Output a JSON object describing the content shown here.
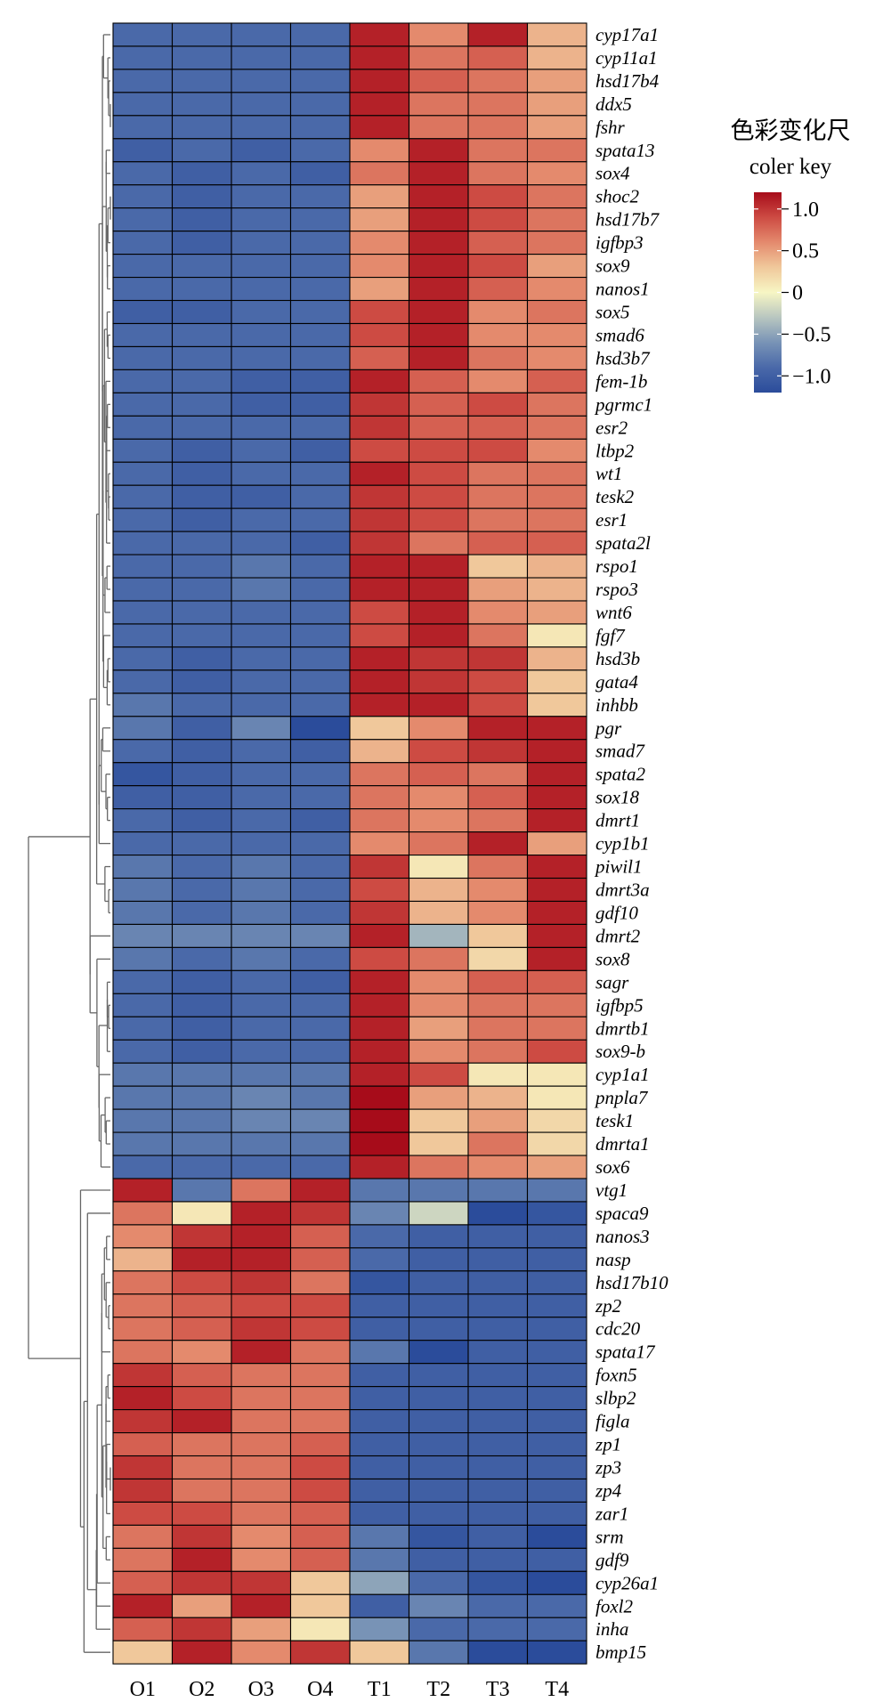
{
  "chart_data": {
    "type": "heatmap",
    "color_key": {
      "title": "色彩变化尺",
      "subtitle": "coler key",
      "ticks": [
        "1.0",
        "0.5",
        "0",
        "−0.5",
        "−1.0"
      ],
      "range": [
        -1.2,
        1.2
      ],
      "tick_values": [
        1.0,
        0.5,
        0,
        -0.5,
        -1.0
      ],
      "colors": [
        "#2b4c9b",
        "#4a69a9",
        "#7893b6",
        "#b8c6c0",
        "#f7f6c4",
        "#f0c89b",
        "#e48a6d",
        "#cd4b43",
        "#a70c1a"
      ]
    },
    "columns": [
      "O1",
      "O2",
      "O3",
      "O4",
      "T1",
      "T2",
      "T3",
      "T4"
    ],
    "rows": [
      {
        "gene": "cyp17a1",
        "values": [
          -0.9,
          -0.9,
          -0.9,
          -0.9,
          1.1,
          0.6,
          1.1,
          0.4
        ]
      },
      {
        "gene": "cyp11a1",
        "values": [
          -0.9,
          -0.9,
          -0.9,
          -0.9,
          1.1,
          0.7,
          0.8,
          0.4
        ]
      },
      {
        "gene": "hsd17b4",
        "values": [
          -0.9,
          -0.9,
          -0.9,
          -0.9,
          1.1,
          0.8,
          0.7,
          0.5
        ]
      },
      {
        "gene": "ddx5",
        "values": [
          -0.9,
          -0.9,
          -0.9,
          -0.9,
          1.1,
          0.7,
          0.7,
          0.5
        ]
      },
      {
        "gene": "fshr",
        "values": [
          -0.9,
          -0.9,
          -0.9,
          -0.9,
          1.1,
          0.7,
          0.7,
          0.5
        ]
      },
      {
        "gene": "spata13",
        "values": [
          -1.0,
          -0.9,
          -1.0,
          -0.9,
          0.6,
          1.1,
          0.7,
          0.7
        ]
      },
      {
        "gene": "sox4",
        "values": [
          -0.9,
          -1.0,
          -0.9,
          -1.0,
          0.7,
          1.1,
          0.7,
          0.6
        ]
      },
      {
        "gene": "shoc2",
        "values": [
          -0.9,
          -1.0,
          -0.9,
          -0.9,
          0.5,
          1.1,
          0.9,
          0.7
        ]
      },
      {
        "gene": "hsd17b7",
        "values": [
          -0.9,
          -1.0,
          -0.9,
          -0.9,
          0.5,
          1.1,
          0.9,
          0.7
        ]
      },
      {
        "gene": "igfbp3",
        "values": [
          -0.9,
          -1.0,
          -0.9,
          -0.9,
          0.6,
          1.1,
          0.8,
          0.7
        ]
      },
      {
        "gene": "sox9",
        "values": [
          -0.9,
          -0.9,
          -0.9,
          -0.9,
          0.6,
          1.1,
          0.9,
          0.5
        ]
      },
      {
        "gene": "nanos1",
        "values": [
          -0.9,
          -0.9,
          -0.9,
          -0.9,
          0.5,
          1.1,
          0.8,
          0.6
        ]
      },
      {
        "gene": "sox5",
        "values": [
          -1.0,
          -1.0,
          -0.9,
          -0.9,
          0.9,
          1.1,
          0.6,
          0.7
        ]
      },
      {
        "gene": "smad6",
        "values": [
          -0.9,
          -0.9,
          -0.9,
          -0.9,
          0.9,
          1.1,
          0.6,
          0.6
        ]
      },
      {
        "gene": "hsd3b7",
        "values": [
          -0.9,
          -0.9,
          -0.9,
          -0.9,
          0.8,
          1.1,
          0.7,
          0.6
        ]
      },
      {
        "gene": "fem-1b",
        "values": [
          -0.9,
          -0.9,
          -1.0,
          -1.0,
          1.1,
          0.8,
          0.6,
          0.8
        ]
      },
      {
        "gene": "pgrmc1",
        "values": [
          -0.9,
          -0.9,
          -1.0,
          -1.0,
          1.0,
          0.8,
          0.9,
          0.7
        ]
      },
      {
        "gene": "esr2",
        "values": [
          -0.9,
          -0.9,
          -0.9,
          -0.9,
          1.0,
          0.8,
          0.8,
          0.7
        ]
      },
      {
        "gene": "ltbp2",
        "values": [
          -0.9,
          -1.0,
          -0.9,
          -1.0,
          0.9,
          0.9,
          0.9,
          0.6
        ]
      },
      {
        "gene": "wt1",
        "values": [
          -0.9,
          -1.0,
          -0.9,
          -0.9,
          1.1,
          0.9,
          0.7,
          0.7
        ]
      },
      {
        "gene": "tesk2",
        "values": [
          -0.9,
          -1.0,
          -1.0,
          -0.9,
          1.0,
          0.9,
          0.7,
          0.7
        ]
      },
      {
        "gene": "esr1",
        "values": [
          -0.9,
          -1.0,
          -0.9,
          -0.9,
          1.0,
          0.9,
          0.7,
          0.7
        ]
      },
      {
        "gene": "spata2l",
        "values": [
          -0.9,
          -0.9,
          -0.9,
          -1.0,
          1.0,
          0.7,
          0.8,
          0.8
        ]
      },
      {
        "gene": "rspo1",
        "values": [
          -0.9,
          -0.9,
          -0.8,
          -0.9,
          1.1,
          1.1,
          0.3,
          0.4
        ]
      },
      {
        "gene": "rspo3",
        "values": [
          -0.9,
          -0.9,
          -0.8,
          -0.9,
          1.1,
          1.1,
          0.5,
          0.4
        ]
      },
      {
        "gene": "wnt6",
        "values": [
          -0.9,
          -0.9,
          -0.9,
          -0.9,
          0.9,
          1.1,
          0.6,
          0.5
        ]
      },
      {
        "gene": "fgf7",
        "values": [
          -0.9,
          -0.9,
          -0.9,
          -0.9,
          0.9,
          1.1,
          0.7,
          0.1
        ]
      },
      {
        "gene": "hsd3b",
        "values": [
          -0.9,
          -1.0,
          -0.9,
          -0.9,
          1.1,
          1.0,
          1.0,
          0.4
        ]
      },
      {
        "gene": "gata4",
        "values": [
          -0.9,
          -1.0,
          -0.9,
          -0.9,
          1.1,
          1.0,
          0.9,
          0.3
        ]
      },
      {
        "gene": "inhbb",
        "values": [
          -0.8,
          -0.9,
          -0.9,
          -0.9,
          1.1,
          1.1,
          0.9,
          0.3
        ]
      },
      {
        "gene": "pgr",
        "values": [
          -0.8,
          -1.0,
          -0.7,
          -1.2,
          0.3,
          0.6,
          1.1,
          1.1
        ]
      },
      {
        "gene": "smad7",
        "values": [
          -0.9,
          -1.0,
          -0.9,
          -1.0,
          0.4,
          0.9,
          1.0,
          1.1
        ]
      },
      {
        "gene": "spata2",
        "values": [
          -1.1,
          -1.0,
          -0.9,
          -0.9,
          0.7,
          0.8,
          0.7,
          1.1
        ]
      },
      {
        "gene": "sox18",
        "values": [
          -1.0,
          -1.0,
          -0.9,
          -0.9,
          0.7,
          0.6,
          0.8,
          1.1
        ]
      },
      {
        "gene": "dmrt1",
        "values": [
          -0.9,
          -1.0,
          -0.9,
          -1.0,
          0.7,
          0.6,
          0.7,
          1.1
        ]
      },
      {
        "gene": "cyp1b1",
        "values": [
          -0.9,
          -0.9,
          -0.9,
          -0.9,
          0.6,
          0.7,
          1.1,
          0.5
        ]
      },
      {
        "gene": "piwil1",
        "values": [
          -0.8,
          -0.9,
          -0.8,
          -0.9,
          1.0,
          0.1,
          0.7,
          1.1
        ]
      },
      {
        "gene": "dmrt3a",
        "values": [
          -0.8,
          -0.9,
          -0.8,
          -0.9,
          0.9,
          0.4,
          0.6,
          1.1
        ]
      },
      {
        "gene": "gdf10",
        "values": [
          -0.8,
          -0.9,
          -0.8,
          -0.9,
          1.0,
          0.4,
          0.6,
          1.1
        ]
      },
      {
        "gene": "dmrt2",
        "values": [
          -0.7,
          -0.7,
          -0.7,
          -0.7,
          1.1,
          -0.4,
          0.3,
          1.1
        ]
      },
      {
        "gene": "sox8",
        "values": [
          -0.8,
          -0.9,
          -0.8,
          -0.9,
          0.9,
          0.7,
          0.2,
          1.1
        ]
      },
      {
        "gene": "sagr",
        "values": [
          -0.9,
          -1.0,
          -0.9,
          -1.0,
          1.1,
          0.6,
          0.8,
          0.8
        ]
      },
      {
        "gene": "igfbp5",
        "values": [
          -0.9,
          -1.0,
          -0.9,
          -0.9,
          1.1,
          0.6,
          0.7,
          0.7
        ]
      },
      {
        "gene": "dmrtb1",
        "values": [
          -0.9,
          -1.0,
          -0.9,
          -0.9,
          1.1,
          0.5,
          0.7,
          0.7
        ]
      },
      {
        "gene": "sox9-b",
        "values": [
          -0.9,
          -1.0,
          -0.9,
          -0.9,
          1.1,
          0.6,
          0.7,
          0.9
        ]
      },
      {
        "gene": "cyp1a1",
        "values": [
          -0.8,
          -0.8,
          -0.8,
          -0.8,
          1.1,
          0.9,
          0.1,
          0.1
        ]
      },
      {
        "gene": "pnpla7",
        "values": [
          -0.8,
          -0.8,
          -0.7,
          -0.8,
          1.2,
          0.5,
          0.4,
          0.1
        ]
      },
      {
        "gene": "tesk1",
        "values": [
          -0.8,
          -0.8,
          -0.7,
          -0.7,
          1.2,
          0.3,
          0.5,
          0.2
        ]
      },
      {
        "gene": "dmrta1",
        "values": [
          -0.8,
          -0.8,
          -0.8,
          -0.8,
          1.2,
          0.3,
          0.7,
          0.2
        ]
      },
      {
        "gene": "sox6",
        "values": [
          -0.9,
          -0.9,
          -0.9,
          -0.9,
          1.1,
          0.7,
          0.6,
          0.5
        ]
      },
      {
        "gene": "vtg1",
        "values": [
          1.1,
          -0.8,
          0.7,
          1.1,
          -0.8,
          -0.8,
          -0.8,
          -0.8
        ]
      },
      {
        "gene": "spaca9",
        "values": [
          0.7,
          0.1,
          1.1,
          1.0,
          -0.7,
          -0.2,
          -1.6,
          -1.1
        ]
      },
      {
        "gene": "nanos3",
        "values": [
          0.6,
          1.0,
          1.1,
          0.8,
          -0.9,
          -1.0,
          -1.0,
          -1.0
        ]
      },
      {
        "gene": "nasp",
        "values": [
          0.4,
          1.1,
          1.1,
          0.8,
          -0.9,
          -1.0,
          -1.0,
          -1.0
        ]
      },
      {
        "gene": "hsd17b10",
        "values": [
          0.7,
          0.9,
          1.0,
          0.7,
          -1.1,
          -1.0,
          -1.0,
          -1.0
        ]
      },
      {
        "gene": "zp2",
        "values": [
          0.7,
          0.8,
          0.9,
          0.9,
          -1.0,
          -1.0,
          -1.0,
          -1.0
        ]
      },
      {
        "gene": "cdc20",
        "values": [
          0.7,
          0.8,
          1.0,
          0.9,
          -1.0,
          -1.0,
          -1.0,
          -1.0
        ]
      },
      {
        "gene": "spata17",
        "values": [
          0.7,
          0.6,
          1.1,
          0.7,
          -0.8,
          -1.3,
          -1.0,
          -1.0
        ]
      },
      {
        "gene": "foxn5",
        "values": [
          1.0,
          0.8,
          0.7,
          0.7,
          -1.0,
          -1.0,
          -1.0,
          -1.0
        ]
      },
      {
        "gene": "slbp2",
        "values": [
          1.1,
          0.9,
          0.7,
          0.7,
          -1.0,
          -1.0,
          -1.0,
          -1.0
        ]
      },
      {
        "gene": "figla",
        "values": [
          1.0,
          1.1,
          0.7,
          0.7,
          -1.0,
          -1.0,
          -1.0,
          -1.0
        ]
      },
      {
        "gene": "zp1",
        "values": [
          0.8,
          0.7,
          0.7,
          0.8,
          -1.0,
          -1.0,
          -1.0,
          -1.0
        ]
      },
      {
        "gene": "zp3",
        "values": [
          1.0,
          0.7,
          0.7,
          0.9,
          -1.0,
          -1.0,
          -1.0,
          -1.0
        ]
      },
      {
        "gene": "zp4",
        "values": [
          1.0,
          0.7,
          0.7,
          0.9,
          -1.0,
          -1.0,
          -1.0,
          -1.0
        ]
      },
      {
        "gene": "zar1",
        "values": [
          0.9,
          0.9,
          0.7,
          0.8,
          -1.0,
          -1.0,
          -1.0,
          -1.0
        ]
      },
      {
        "gene": "srm",
        "values": [
          0.7,
          1.0,
          0.6,
          0.8,
          -0.8,
          -1.1,
          -1.0,
          -1.2
        ]
      },
      {
        "gene": "gdf9",
        "values": [
          0.7,
          1.1,
          0.6,
          0.8,
          -0.8,
          -1.0,
          -1.0,
          -1.0
        ]
      },
      {
        "gene": "cyp26a1",
        "values": [
          0.8,
          1.0,
          1.0,
          0.3,
          -0.5,
          -0.9,
          -1.1,
          -1.3
        ]
      },
      {
        "gene": "foxl2",
        "values": [
          1.1,
          0.5,
          1.1,
          0.3,
          -1.0,
          -0.7,
          -0.9,
          -0.9
        ]
      },
      {
        "gene": "inha",
        "values": [
          0.8,
          1.0,
          0.5,
          0.1,
          -0.6,
          -0.9,
          -0.9,
          -0.9
        ]
      },
      {
        "gene": "bmp15",
        "values": [
          0.3,
          1.1,
          0.6,
          1.0,
          0.3,
          -0.8,
          -1.4,
          -1.6
        ]
      }
    ]
  }
}
